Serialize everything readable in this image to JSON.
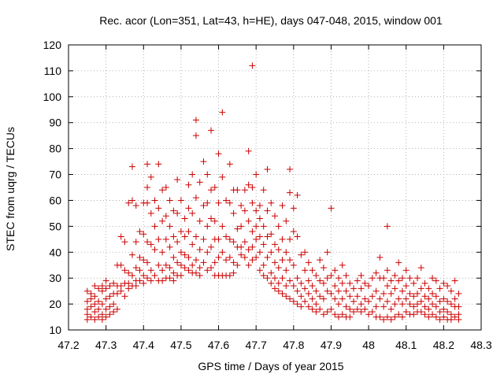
{
  "chart_data": {
    "type": "scatter",
    "title": "Rec. acor (Lon=351, Lat=43, h=HE), days 047-048, 2015, window 001",
    "xlabel": "GPS time / Days of year 2015",
    "ylabel": "STEC from uqrg / TECUs",
    "xlim": [
      47.2,
      48.3
    ],
    "ylim": [
      10,
      120
    ],
    "xticks": [
      "47.2",
      "47.3",
      "47.4",
      "47.5",
      "47.6",
      "47.7",
      "47.8",
      "47.9",
      "48",
      "48.1",
      "48.2",
      "48.3"
    ],
    "yticks": [
      "10",
      "20",
      "30",
      "40",
      "50",
      "60",
      "70",
      "80",
      "90",
      "100",
      "110",
      "120"
    ],
    "grid": true,
    "marker": "+",
    "color": "#cc0000",
    "points": [
      [
        47.25,
        25
      ],
      [
        47.25,
        21
      ],
      [
        47.25,
        18
      ],
      [
        47.25,
        16
      ],
      [
        47.25,
        14
      ],
      [
        47.26,
        24
      ],
      [
        47.26,
        22
      ],
      [
        47.26,
        19
      ],
      [
        47.26,
        15
      ],
      [
        47.27,
        27
      ],
      [
        47.27,
        23
      ],
      [
        47.27,
        20
      ],
      [
        47.27,
        17
      ],
      [
        47.27,
        14
      ],
      [
        47.28,
        26
      ],
      [
        47.28,
        21
      ],
      [
        47.28,
        18
      ],
      [
        47.28,
        15
      ],
      [
        47.29,
        27
      ],
      [
        47.29,
        25
      ],
      [
        47.29,
        20
      ],
      [
        47.29,
        16
      ],
      [
        47.29,
        14
      ],
      [
        47.3,
        29
      ],
      [
        47.3,
        26
      ],
      [
        47.3,
        22
      ],
      [
        47.3,
        18
      ],
      [
        47.3,
        15
      ],
      [
        47.31,
        27
      ],
      [
        47.31,
        23
      ],
      [
        47.31,
        19
      ],
      [
        47.31,
        16
      ],
      [
        47.32,
        28
      ],
      [
        47.32,
        24
      ],
      [
        47.32,
        20
      ],
      [
        47.32,
        17
      ],
      [
        47.33,
        35
      ],
      [
        47.33,
        27
      ],
      [
        47.33,
        24
      ],
      [
        47.33,
        18
      ],
      [
        47.34,
        46
      ],
      [
        47.34,
        35
      ],
      [
        47.34,
        27
      ],
      [
        47.34,
        25
      ],
      [
        47.35,
        44
      ],
      [
        47.35,
        33
      ],
      [
        47.35,
        28
      ],
      [
        47.35,
        23
      ],
      [
        47.36,
        59
      ],
      [
        47.36,
        32
      ],
      [
        47.36,
        28
      ],
      [
        47.36,
        26
      ],
      [
        47.37,
        73
      ],
      [
        47.37,
        60
      ],
      [
        47.37,
        39
      ],
      [
        47.37,
        31
      ],
      [
        47.37,
        27
      ],
      [
        47.38,
        58
      ],
      [
        47.38,
        44
      ],
      [
        47.38,
        34
      ],
      [
        47.38,
        29
      ],
      [
        47.38,
        27
      ],
      [
        47.39,
        48
      ],
      [
        47.39,
        38
      ],
      [
        47.39,
        33
      ],
      [
        47.39,
        29
      ],
      [
        47.4,
        59
      ],
      [
        47.4,
        47
      ],
      [
        47.4,
        37
      ],
      [
        47.4,
        31
      ],
      [
        47.4,
        28
      ],
      [
        47.41,
        74
      ],
      [
        47.41,
        65
      ],
      [
        47.41,
        59
      ],
      [
        47.41,
        44
      ],
      [
        47.41,
        36
      ],
      [
        47.41,
        30
      ],
      [
        47.42,
        69
      ],
      [
        47.42,
        55
      ],
      [
        47.42,
        43
      ],
      [
        47.42,
        33
      ],
      [
        47.42,
        29
      ],
      [
        47.43,
        60
      ],
      [
        47.43,
        50
      ],
      [
        47.43,
        41
      ],
      [
        47.43,
        31
      ],
      [
        47.44,
        74
      ],
      [
        47.44,
        57
      ],
      [
        47.44,
        45
      ],
      [
        47.44,
        35
      ],
      [
        47.44,
        29
      ],
      [
        47.45,
        64
      ],
      [
        47.45,
        52
      ],
      [
        47.45,
        40
      ],
      [
        47.45,
        33
      ],
      [
        47.45,
        29
      ],
      [
        47.46,
        65
      ],
      [
        47.46,
        54
      ],
      [
        47.46,
        45
      ],
      [
        47.46,
        35
      ],
      [
        47.46,
        30
      ],
      [
        47.47,
        60
      ],
      [
        47.47,
        50
      ],
      [
        47.47,
        42
      ],
      [
        47.47,
        34
      ],
      [
        47.47,
        30
      ],
      [
        47.48,
        56
      ],
      [
        47.48,
        46
      ],
      [
        47.48,
        38
      ],
      [
        47.48,
        32
      ],
      [
        47.48,
        29
      ],
      [
        47.49,
        68
      ],
      [
        47.49,
        55
      ],
      [
        47.49,
        44
      ],
      [
        47.49,
        36
      ],
      [
        47.49,
        31
      ],
      [
        47.5,
        60
      ],
      [
        47.5,
        48
      ],
      [
        47.5,
        40
      ],
      [
        47.5,
        35
      ],
      [
        47.5,
        31
      ],
      [
        47.51,
        53
      ],
      [
        47.51,
        46
      ],
      [
        47.51,
        39
      ],
      [
        47.51,
        34
      ],
      [
        47.52,
        66
      ],
      [
        47.52,
        57
      ],
      [
        47.52,
        48
      ],
      [
        47.52,
        38
      ],
      [
        47.52,
        33
      ],
      [
        47.53,
        70
      ],
      [
        47.53,
        55
      ],
      [
        47.53,
        43
      ],
      [
        47.53,
        35
      ],
      [
        47.53,
        32
      ],
      [
        47.54,
        91
      ],
      [
        47.54,
        85
      ],
      [
        47.54,
        61
      ],
      [
        47.54,
        46
      ],
      [
        47.54,
        37
      ],
      [
        47.54,
        32
      ],
      [
        47.55,
        67
      ],
      [
        47.55,
        52
      ],
      [
        47.55,
        41
      ],
      [
        47.55,
        34
      ],
      [
        47.55,
        31
      ],
      [
        47.56,
        75
      ],
      [
        47.56,
        58
      ],
      [
        47.56,
        45
      ],
      [
        47.56,
        36
      ],
      [
        47.57,
        70
      ],
      [
        47.57,
        59
      ],
      [
        47.57,
        50
      ],
      [
        47.57,
        40
      ],
      [
        47.57,
        33
      ],
      [
        47.58,
        87
      ],
      [
        47.58,
        64
      ],
      [
        47.58,
        53
      ],
      [
        47.58,
        42
      ],
      [
        47.58,
        34
      ],
      [
        47.59,
        65
      ],
      [
        47.59,
        52
      ],
      [
        47.59,
        45
      ],
      [
        47.59,
        36
      ],
      [
        47.59,
        31
      ],
      [
        47.6,
        78
      ],
      [
        47.6,
        59
      ],
      [
        47.6,
        45
      ],
      [
        47.6,
        38
      ],
      [
        47.6,
        31
      ],
      [
        47.61,
        94
      ],
      [
        47.61,
        69
      ],
      [
        47.61,
        50
      ],
      [
        47.61,
        40
      ],
      [
        47.61,
        31
      ],
      [
        47.62,
        60
      ],
      [
        47.62,
        46
      ],
      [
        47.62,
        37
      ],
      [
        47.62,
        31
      ],
      [
        47.63,
        74
      ],
      [
        47.63,
        59
      ],
      [
        47.63,
        45
      ],
      [
        47.63,
        38
      ],
      [
        47.63,
        31
      ],
      [
        47.64,
        64
      ],
      [
        47.64,
        55
      ],
      [
        47.64,
        44
      ],
      [
        47.64,
        36
      ],
      [
        47.64,
        32
      ],
      [
        47.65,
        64
      ],
      [
        47.65,
        49
      ],
      [
        47.65,
        42
      ],
      [
        47.65,
        35
      ],
      [
        47.66,
        58
      ],
      [
        47.66,
        50
      ],
      [
        47.66,
        42
      ],
      [
        47.66,
        39
      ],
      [
        47.67,
        64
      ],
      [
        47.67,
        56
      ],
      [
        47.67,
        44
      ],
      [
        47.67,
        38
      ],
      [
        47.68,
        79
      ],
      [
        47.68,
        66
      ],
      [
        47.68,
        52
      ],
      [
        47.68,
        41
      ],
      [
        47.68,
        35
      ],
      [
        47.69,
        112
      ],
      [
        47.69,
        65
      ],
      [
        47.69,
        59
      ],
      [
        47.69,
        48
      ],
      [
        47.69,
        42
      ],
      [
        47.69,
        37
      ],
      [
        47.7,
        70
      ],
      [
        47.7,
        56
      ],
      [
        47.7,
        50
      ],
      [
        47.7,
        45
      ],
      [
        47.7,
        38
      ],
      [
        47.71,
        58
      ],
      [
        47.71,
        53
      ],
      [
        47.71,
        46
      ],
      [
        47.71,
        40
      ],
      [
        47.71,
        33
      ],
      [
        47.72,
        64
      ],
      [
        47.72,
        50
      ],
      [
        47.72,
        43
      ],
      [
        47.72,
        35
      ],
      [
        47.72,
        31
      ],
      [
        47.73,
        72
      ],
      [
        47.73,
        56
      ],
      [
        47.73,
        46
      ],
      [
        47.73,
        38
      ],
      [
        47.73,
        30
      ],
      [
        47.74,
        59
      ],
      [
        47.74,
        47
      ],
      [
        47.74,
        40
      ],
      [
        47.74,
        32
      ],
      [
        47.74,
        28
      ],
      [
        47.75,
        54
      ],
      [
        47.75,
        43
      ],
      [
        47.75,
        36
      ],
      [
        47.75,
        30
      ],
      [
        47.75,
        26
      ],
      [
        47.76,
        50
      ],
      [
        47.76,
        41
      ],
      [
        47.76,
        34
      ],
      [
        47.76,
        28
      ],
      [
        47.76,
        25
      ],
      [
        47.77,
        58
      ],
      [
        47.77,
        45
      ],
      [
        47.77,
        37
      ],
      [
        47.77,
        30
      ],
      [
        47.77,
        24
      ],
      [
        47.78,
        52
      ],
      [
        47.78,
        40
      ],
      [
        47.78,
        33
      ],
      [
        47.78,
        27
      ],
      [
        47.78,
        23
      ],
      [
        47.79,
        72
      ],
      [
        47.79,
        63
      ],
      [
        47.79,
        45
      ],
      [
        47.79,
        37
      ],
      [
        47.79,
        29
      ],
      [
        47.79,
        22
      ],
      [
        47.8,
        57
      ],
      [
        47.8,
        48
      ],
      [
        47.8,
        35
      ],
      [
        47.8,
        27
      ],
      [
        47.8,
        21
      ],
      [
        47.81,
        62
      ],
      [
        47.81,
        46
      ],
      [
        47.81,
        30
      ],
      [
        47.81,
        25
      ],
      [
        47.81,
        20
      ],
      [
        47.82,
        39
      ],
      [
        47.82,
        28
      ],
      [
        47.82,
        23
      ],
      [
        47.82,
        19
      ],
      [
        47.83,
        40
      ],
      [
        47.83,
        33
      ],
      [
        47.83,
        26
      ],
      [
        47.83,
        21
      ],
      [
        47.84,
        36
      ],
      [
        47.84,
        29
      ],
      [
        47.84,
        24
      ],
      [
        47.84,
        19
      ],
      [
        47.85,
        33
      ],
      [
        47.85,
        27
      ],
      [
        47.85,
        22
      ],
      [
        47.85,
        18
      ],
      [
        47.86,
        31
      ],
      [
        47.86,
        25
      ],
      [
        47.86,
        20
      ],
      [
        47.86,
        17
      ],
      [
        47.87,
        37
      ],
      [
        47.87,
        29
      ],
      [
        47.87,
        23
      ],
      [
        47.87,
        18
      ],
      [
        47.88,
        34
      ],
      [
        47.88,
        28
      ],
      [
        47.88,
        22
      ],
      [
        47.88,
        16
      ],
      [
        47.89,
        40
      ],
      [
        47.89,
        30
      ],
      [
        47.89,
        25
      ],
      [
        47.89,
        17
      ],
      [
        47.9,
        57
      ],
      [
        47.9,
        31
      ],
      [
        47.9,
        24
      ],
      [
        47.9,
        18
      ],
      [
        47.91,
        33
      ],
      [
        47.91,
        27
      ],
      [
        47.91,
        22
      ],
      [
        47.91,
        16
      ],
      [
        47.92,
        30
      ],
      [
        47.92,
        25
      ],
      [
        47.92,
        20
      ],
      [
        47.92,
        15
      ],
      [
        47.93,
        35
      ],
      [
        47.93,
        28
      ],
      [
        47.93,
        22
      ],
      [
        47.93,
        16
      ],
      [
        47.94,
        31
      ],
      [
        47.94,
        25
      ],
      [
        47.94,
        19
      ],
      [
        47.94,
        15
      ],
      [
        47.95,
        28
      ],
      [
        47.95,
        23
      ],
      [
        47.95,
        18
      ],
      [
        47.95,
        15
      ],
      [
        47.96,
        26
      ],
      [
        47.96,
        21
      ],
      [
        47.96,
        17
      ],
      [
        47.97,
        29
      ],
      [
        47.97,
        23
      ],
      [
        47.97,
        18
      ],
      [
        47.98,
        31
      ],
      [
        47.98,
        26
      ],
      [
        47.98,
        20
      ],
      [
        47.98,
        17
      ],
      [
        47.99,
        28
      ],
      [
        47.99,
        22
      ],
      [
        47.99,
        18
      ],
      [
        48.0,
        27
      ],
      [
        48.0,
        21
      ],
      [
        48.0,
        16
      ],
      [
        48.01,
        30
      ],
      [
        48.01,
        23
      ],
      [
        48.01,
        17
      ],
      [
        48.02,
        32
      ],
      [
        48.02,
        25
      ],
      [
        48.02,
        19
      ],
      [
        48.02,
        15
      ],
      [
        48.03,
        38
      ],
      [
        48.03,
        30
      ],
      [
        48.03,
        22
      ],
      [
        48.03,
        15
      ],
      [
        48.04,
        30
      ],
      [
        48.04,
        24
      ],
      [
        48.04,
        19
      ],
      [
        48.04,
        14
      ],
      [
        48.05,
        50
      ],
      [
        48.05,
        33
      ],
      [
        48.05,
        27
      ],
      [
        48.05,
        21
      ],
      [
        48.05,
        15
      ],
      [
        48.06,
        29
      ],
      [
        48.06,
        24
      ],
      [
        48.06,
        18
      ],
      [
        48.06,
        14
      ],
      [
        48.07,
        31
      ],
      [
        48.07,
        26
      ],
      [
        48.07,
        20
      ],
      [
        48.07,
        15
      ],
      [
        48.08,
        36
      ],
      [
        48.08,
        29
      ],
      [
        48.08,
        22
      ],
      [
        48.08,
        16
      ],
      [
        48.09,
        30
      ],
      [
        48.09,
        25
      ],
      [
        48.09,
        20
      ],
      [
        48.09,
        15
      ],
      [
        48.1,
        33
      ],
      [
        48.1,
        27
      ],
      [
        48.1,
        22
      ],
      [
        48.1,
        17
      ],
      [
        48.11,
        30
      ],
      [
        48.11,
        24
      ],
      [
        48.11,
        20
      ],
      [
        48.11,
        16
      ],
      [
        48.12,
        28
      ],
      [
        48.12,
        23
      ],
      [
        48.12,
        19
      ],
      [
        48.12,
        16
      ],
      [
        48.13,
        30
      ],
      [
        48.13,
        24
      ],
      [
        48.13,
        20
      ],
      [
        48.13,
        17
      ],
      [
        48.14,
        34
      ],
      [
        48.14,
        26
      ],
      [
        48.14,
        21
      ],
      [
        48.14,
        17
      ],
      [
        48.15,
        28
      ],
      [
        48.15,
        23
      ],
      [
        48.15,
        19
      ],
      [
        48.15,
        16
      ],
      [
        48.16,
        26
      ],
      [
        48.16,
        22
      ],
      [
        48.16,
        18
      ],
      [
        48.16,
        15
      ],
      [
        48.17,
        30
      ],
      [
        48.17,
        24
      ],
      [
        48.17,
        20
      ],
      [
        48.17,
        16
      ],
      [
        48.18,
        29
      ],
      [
        48.18,
        23
      ],
      [
        48.18,
        19
      ],
      [
        48.18,
        15
      ],
      [
        48.19,
        26
      ],
      [
        48.19,
        21
      ],
      [
        48.19,
        17
      ],
      [
        48.19,
        14
      ],
      [
        48.2,
        28
      ],
      [
        48.2,
        22
      ],
      [
        48.2,
        18
      ],
      [
        48.2,
        15
      ],
      [
        48.21,
        27
      ],
      [
        48.21,
        21
      ],
      [
        48.21,
        17
      ],
      [
        48.21,
        14
      ],
      [
        48.22,
        25
      ],
      [
        48.22,
        20
      ],
      [
        48.22,
        16
      ],
      [
        48.22,
        14
      ],
      [
        48.23,
        29
      ],
      [
        48.23,
        22
      ],
      [
        48.23,
        19
      ],
      [
        48.23,
        15
      ],
      [
        48.24,
        24
      ],
      [
        48.24,
        19
      ],
      [
        48.24,
        16
      ],
      [
        48.24,
        14
      ]
    ]
  }
}
